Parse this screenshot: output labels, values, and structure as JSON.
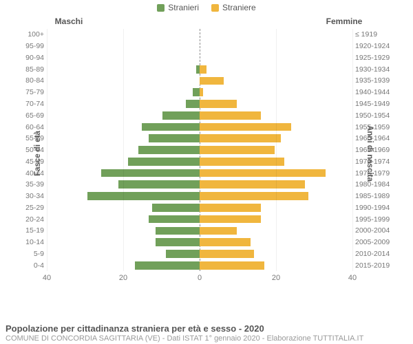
{
  "chart": {
    "type": "population-pyramid",
    "legend": {
      "male": {
        "label": "Stranieri",
        "color": "#71a05a"
      },
      "female": {
        "label": "Straniere",
        "color": "#f0b63e"
      }
    },
    "col_headings": {
      "left": "Maschi",
      "right": "Femmine"
    },
    "y_axis_left_title": "Fasce di età",
    "y_axis_right_title": "Anni di nascita",
    "x_axis": {
      "max": 45,
      "ticks": [
        40,
        20,
        0,
        20,
        40
      ]
    },
    "grid_color": "rgba(0,0,0,0.06)",
    "center_line_color": "rgba(0,0,0,0.45)",
    "background_color": "#ffffff",
    "label_fontsize": 10.5,
    "colhead_fontsize": 12,
    "rows": [
      {
        "age": "100+",
        "years": "≤ 1919",
        "male": 0,
        "female": 0
      },
      {
        "age": "95-99",
        "years": "1920-1924",
        "male": 0,
        "female": 0
      },
      {
        "age": "90-94",
        "years": "1925-1929",
        "male": 0,
        "female": 0
      },
      {
        "age": "85-89",
        "years": "1930-1934",
        "male": 1,
        "female": 2
      },
      {
        "age": "80-84",
        "years": "1935-1939",
        "male": 0,
        "female": 7
      },
      {
        "age": "75-79",
        "years": "1940-1944",
        "male": 2,
        "female": 1
      },
      {
        "age": "70-74",
        "years": "1945-1949",
        "male": 4,
        "female": 11
      },
      {
        "age": "65-69",
        "years": "1950-1954",
        "male": 11,
        "female": 18
      },
      {
        "age": "60-64",
        "years": "1955-1959",
        "male": 17,
        "female": 27
      },
      {
        "age": "55-59",
        "years": "1960-1964",
        "male": 15,
        "female": 24
      },
      {
        "age": "50-54",
        "years": "1965-1969",
        "male": 18,
        "female": 22
      },
      {
        "age": "45-49",
        "years": "1970-1974",
        "male": 21,
        "female": 25
      },
      {
        "age": "40-44",
        "years": "1975-1979",
        "male": 29,
        "female": 37
      },
      {
        "age": "35-39",
        "years": "1980-1984",
        "male": 24,
        "female": 31
      },
      {
        "age": "30-34",
        "years": "1985-1989",
        "male": 33,
        "female": 32
      },
      {
        "age": "25-29",
        "years": "1990-1994",
        "male": 14,
        "female": 18
      },
      {
        "age": "20-24",
        "years": "1995-1999",
        "male": 15,
        "female": 18
      },
      {
        "age": "15-19",
        "years": "2000-2004",
        "male": 13,
        "female": 11
      },
      {
        "age": "10-14",
        "years": "2005-2009",
        "male": 13,
        "female": 15
      },
      {
        "age": "5-9",
        "years": "2010-2014",
        "male": 10,
        "female": 16
      },
      {
        "age": "0-4",
        "years": "2015-2019",
        "male": 19,
        "female": 19
      }
    ]
  },
  "caption": {
    "line1": "Popolazione per cittadinanza straniera per età e sesso - 2020",
    "line2": "COMUNE DI CONCORDIA SAGITTARIA (VE) - Dati ISTAT 1° gennaio 2020 - Elaborazione TUTTITALIA.IT"
  }
}
